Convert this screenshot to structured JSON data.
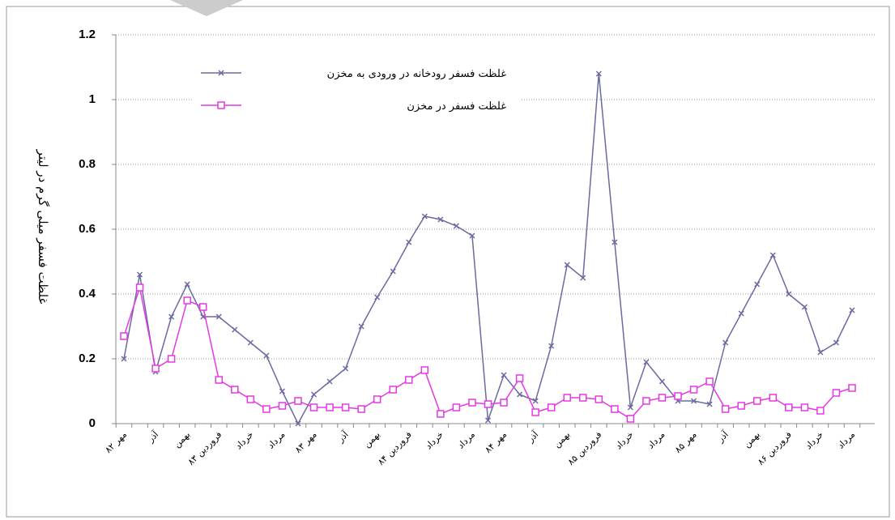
{
  "chart_data": {
    "type": "line",
    "y_label": "غلظت فسفر میلی گرم در لیتر",
    "categories": [
      "مهر ۸۲",
      null,
      "آذر",
      null,
      "بهمن",
      null,
      "فروردین ۸۳",
      null,
      "خرداد",
      null,
      "مرداد",
      null,
      "مهر ۸۳",
      null,
      "آذر",
      null,
      "بهمن",
      null,
      "فروردین ۸۴",
      null,
      "خرداد",
      null,
      "مرداد",
      null,
      "مهر ۸۴",
      null,
      "آذر",
      null,
      "بهمن",
      null,
      "فروردین ۸۵",
      null,
      "خرداد",
      null,
      "مرداد",
      null,
      "مهر ۸۵",
      null,
      "آذر",
      null,
      "بهمن",
      null,
      "فروردین ۸۶",
      null,
      "خرداد",
      null,
      "مرداد"
    ],
    "series": [
      {
        "name": "غلظت فسفر رودخانه در ورودی به مخزن",
        "color": "#6a6aa0",
        "marker": "x",
        "values": [
          0.2,
          0.46,
          0.16,
          0.33,
          0.43,
          0.33,
          0.33,
          0.29,
          0.25,
          0.21,
          0.1,
          0.0,
          0.09,
          0.13,
          0.17,
          0.3,
          0.39,
          0.47,
          0.56,
          0.64,
          0.63,
          0.61,
          0.58,
          0.01,
          0.15,
          0.09,
          0.07,
          0.24,
          0.49,
          0.45,
          1.08,
          0.56,
          0.05,
          0.19,
          0.13,
          0.07,
          0.07,
          0.06,
          0.25,
          0.34,
          0.43,
          0.52,
          0.4,
          0.36,
          0.22,
          0.25,
          0.35
        ]
      },
      {
        "name": "غلظت فسفر در مخزن",
        "color": "#e23ae2",
        "marker": "square",
        "values": [
          0.27,
          0.42,
          0.17,
          0.2,
          0.38,
          0.36,
          0.135,
          0.105,
          0.075,
          0.045,
          0.055,
          0.07,
          0.05,
          0.05,
          0.05,
          0.045,
          0.075,
          0.105,
          0.135,
          0.165,
          0.03,
          0.05,
          0.065,
          0.06,
          0.065,
          0.14,
          0.035,
          0.05,
          0.08,
          0.08,
          0.075,
          0.045,
          0.015,
          0.07,
          0.08,
          0.085,
          0.105,
          0.13,
          0.045,
          0.055,
          0.07,
          0.08,
          0.05,
          0.05,
          0.04,
          0.095,
          0.11
        ]
      }
    ],
    "ylim": [
      0,
      1.2
    ],
    "yticks": [
      0,
      0.2,
      0.4,
      0.6,
      0.8,
      1,
      1.2
    ],
    "grid": true
  }
}
